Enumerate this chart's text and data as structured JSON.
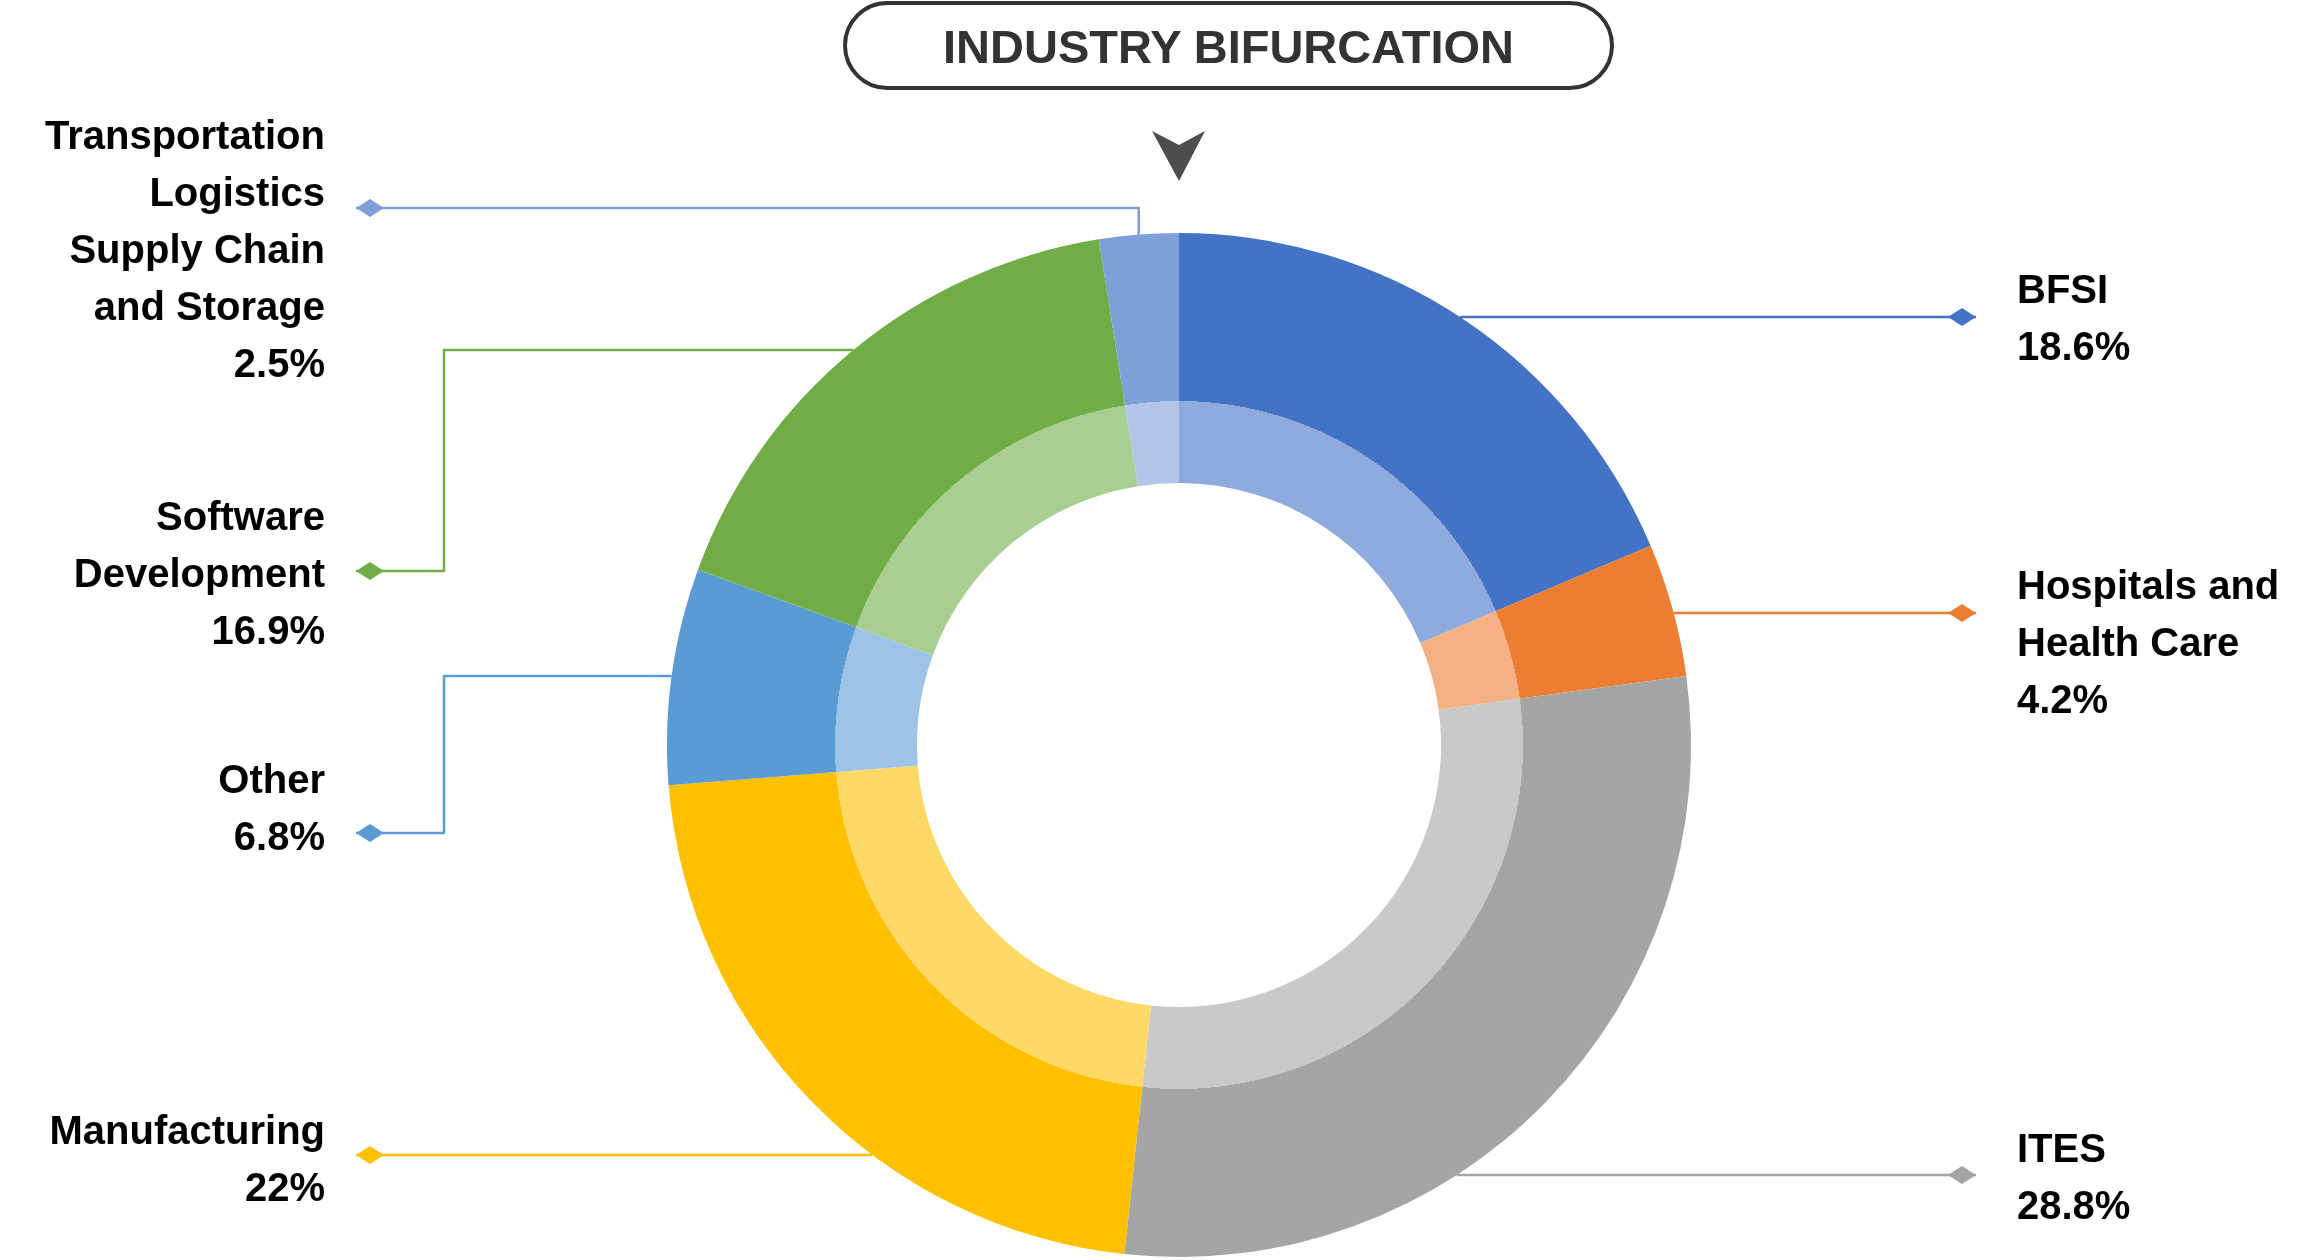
{
  "chart_data": {
    "type": "donut",
    "title": "INDUSTRY BIFURCATION",
    "categories": [
      "BFSI",
      "Hospitals and Health Care",
      "ITES",
      "Manufacturing",
      "Other",
      "Software Development",
      "Transportation Logistics Supply Chain and Storage"
    ],
    "values": [
      18.6,
      4.2,
      28.8,
      22,
      6.8,
      16.9,
      2.5
    ],
    "colors": [
      "#4472c4",
      "#ed7d31",
      "#a5a5a5",
      "#ffc000",
      "#5b9bd5",
      "#70ad47",
      "#7f9fd8"
    ],
    "value_labels": [
      "18.6%",
      "4.2%",
      "28.8%",
      "22%",
      "6.8%",
      "16.9%",
      "2.5%"
    ]
  }
}
